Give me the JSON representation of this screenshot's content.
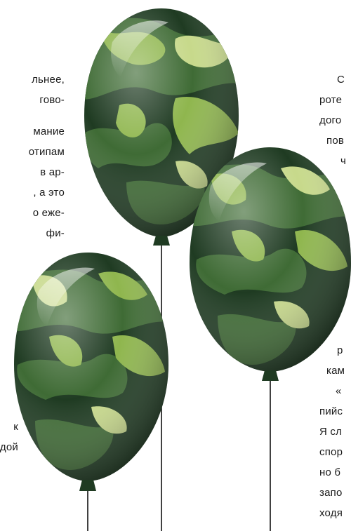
{
  "left_column": {
    "lines": [
      "льнее,",
      "гово-",
      "мание",
      "отипам",
      "в ар-",
      ", а это",
      "о еже-",
      "фи-",
      "к",
      "дой"
    ]
  },
  "right_column": {
    "lines": [
      "С",
      "роте",
      "дого",
      "пов",
      "ч",
      "р",
      "кам",
      "«",
      "пийс",
      "Я сл",
      "спор",
      "но б",
      "запо",
      "ходя"
    ]
  },
  "illustration": {
    "subject": "three camouflage-pattern balloons on strings",
    "colors": {
      "dark_green": "#1f3b22",
      "mid_green": "#3f6b35",
      "light_green": "#8fb64e",
      "pale_green": "#c7d98b",
      "string": "#111111"
    }
  }
}
